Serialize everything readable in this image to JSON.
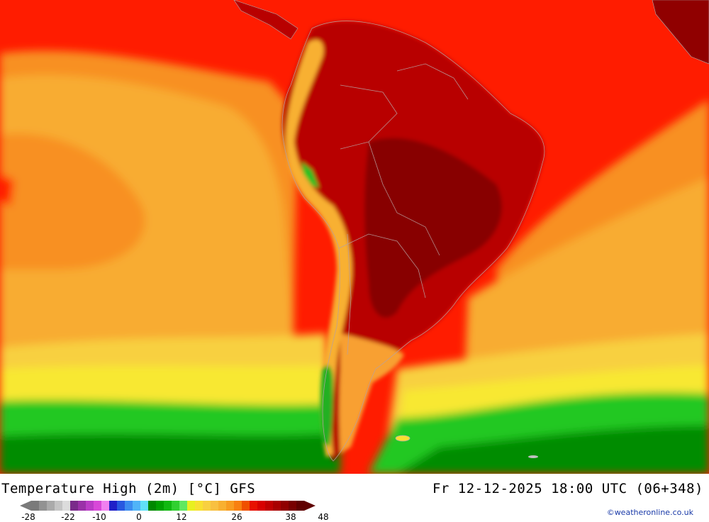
{
  "title": "Temperature High (2m) [°C] GFS",
  "datetime": "Fr 12-12-2025 18:00 UTC (06+348)",
  "credit": "©weatheronline.co.uk",
  "legend": {
    "ticks": [
      "-28",
      "-22",
      "-10",
      "0",
      "12",
      "26",
      "38",
      "48"
    ],
    "colors": [
      "#7a7a7a",
      "#929292",
      "#aaaaaa",
      "#c4c4c4",
      "#dcdcdc",
      "#7a2a8a",
      "#9a30a8",
      "#ba3cc6",
      "#d848d8",
      "#f080f0",
      "#2020c8",
      "#2858e0",
      "#3c8cf0",
      "#50b4f8",
      "#60e0f8",
      "#008800",
      "#00a000",
      "#10b810",
      "#30d030",
      "#60e860",
      "#e8f020",
      "#f8e030",
      "#f8d040",
      "#f8c040",
      "#f8b030",
      "#f89c20",
      "#f88010",
      "#f05000",
      "#e81000",
      "#d80000",
      "#c00000",
      "#a80000",
      "#900000",
      "#780000",
      "#600000"
    ]
  },
  "map": {
    "region": "South America",
    "ocean_colors": {
      "warm": "#ff1c00",
      "orange": "#f89820",
      "light_orange": "#f8b030",
      "yellow": "#f8e030",
      "green": "#10b810",
      "dark_green": "#008800"
    },
    "land_colors": {
      "hot": "#b00000",
      "very_hot": "#8a0000",
      "andes": "#f8b030",
      "andes_green": "#20c020"
    }
  }
}
